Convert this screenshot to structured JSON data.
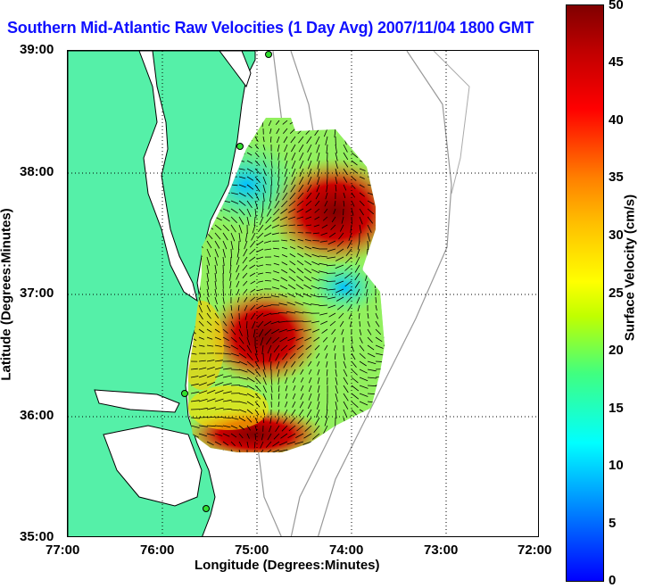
{
  "title": "Southern Mid-Atlantic Raw Velocities (1 Day Avg) 2007/11/04 1800 GMT",
  "map": {
    "type": "vector field map",
    "x_axis": {
      "label": "Longitude (Degrees:Minutes)",
      "ticks": [
        "77:00",
        "76:00",
        "75:00",
        "74:00",
        "73:00",
        "72:00"
      ]
    },
    "y_axis": {
      "label": "Latitude (Degrees:Minutes)",
      "ticks": [
        "39:00",
        "38:00",
        "37:00",
        "36:00",
        "35:00"
      ]
    },
    "grid": true,
    "land_color": "#55f0a8",
    "water_color": "#ffffff"
  },
  "colorbar": {
    "label": "Surface Velocity (cm/s)",
    "ticks": [
      "50",
      "45",
      "40",
      "35",
      "30",
      "25",
      "20",
      "15",
      "10",
      "5",
      "0"
    ],
    "range": [
      0,
      50
    ],
    "colormap": "jet"
  }
}
